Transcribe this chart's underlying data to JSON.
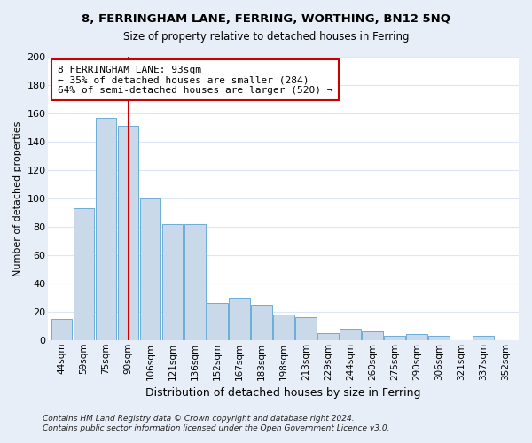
{
  "title1": "8, FERRINGHAM LANE, FERRING, WORTHING, BN12 5NQ",
  "title2": "Size of property relative to detached houses in Ferring",
  "xlabel": "Distribution of detached houses by size in Ferring",
  "ylabel": "Number of detached properties",
  "bar_color": "#c9d9ea",
  "bar_edge_color": "#6aaed6",
  "categories": [
    "44sqm",
    "59sqm",
    "75sqm",
    "90sqm",
    "106sqm",
    "121sqm",
    "136sqm",
    "152sqm",
    "167sqm",
    "183sqm",
    "198sqm",
    "213sqm",
    "229sqm",
    "244sqm",
    "260sqm",
    "275sqm",
    "290sqm",
    "306sqm",
    "321sqm",
    "337sqm",
    "352sqm"
  ],
  "values": [
    15,
    93,
    157,
    151,
    100,
    82,
    82,
    26,
    30,
    25,
    18,
    16,
    5,
    8,
    6,
    3,
    4,
    3,
    0,
    3,
    0
  ],
  "vline_x_index": 3,
  "vline_color": "#cc0000",
  "annotation_text": "8 FERRINGHAM LANE: 93sqm\n← 35% of detached houses are smaller (284)\n64% of semi-detached houses are larger (520) →",
  "annotation_box_color": "white",
  "annotation_box_edge": "#cc0000",
  "ylim": [
    0,
    200
  ],
  "yticks": [
    0,
    20,
    40,
    60,
    80,
    100,
    120,
    140,
    160,
    180,
    200
  ],
  "footer1": "Contains HM Land Registry data © Crown copyright and database right 2024.",
  "footer2": "Contains public sector information licensed under the Open Government Licence v3.0.",
  "fig_background_color": "#e8eef8",
  "ax_background_color": "#ffffff",
  "grid_color": "#dce6f5"
}
